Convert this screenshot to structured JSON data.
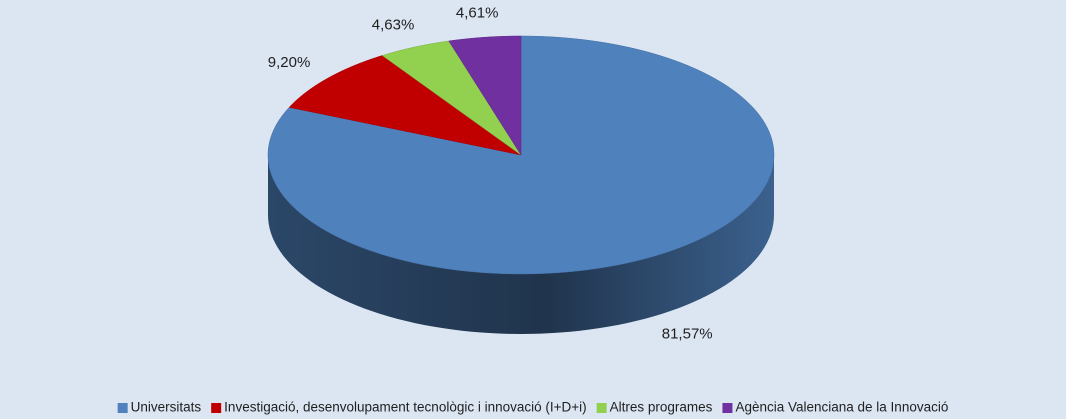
{
  "chart_data": {
    "type": "pie",
    "categories": [
      "Universitats",
      "Investigació, desenvolupament tecnològic i innovació (I+D+i)",
      "Altres programes",
      "Agència Valenciana de la Innovació"
    ],
    "values": [
      81.57,
      9.2,
      4.63,
      4.61
    ],
    "value_labels": [
      "81,57%",
      "9,20%",
      "4,63%",
      "4,61%"
    ],
    "colors": [
      "#4f81bd",
      "#c00000",
      "#92d050",
      "#7030a0"
    ],
    "legend": "bottom"
  }
}
